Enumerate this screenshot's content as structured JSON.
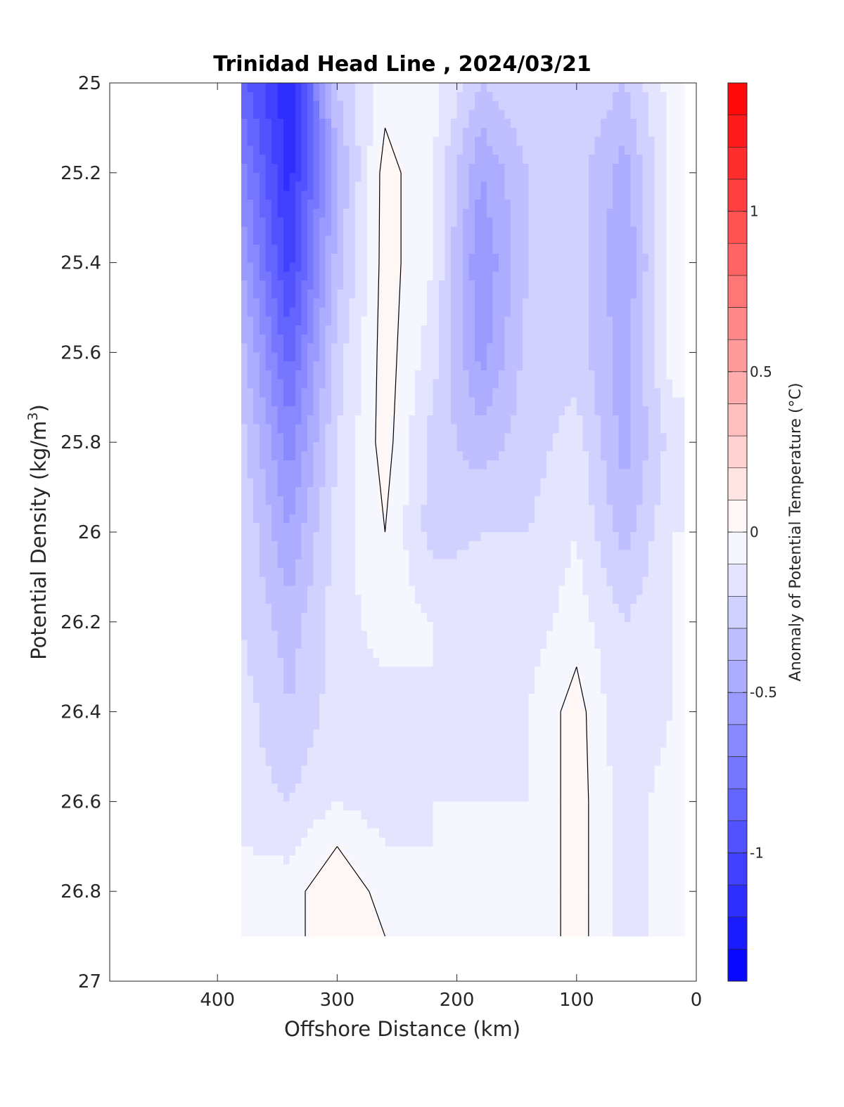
{
  "chart_data": {
    "type": "heatmap",
    "title": "Trinidad Head Line , 2024/03/21",
    "xlabel": "Offshore Distance (km)",
    "ylabel_main": "Potential Density (kg/m",
    "ylabel_sup": "3",
    "ylabel_close": ")",
    "colorbar_label": "Anomaly of Potential Temperature (°C)",
    "xlim": [
      490,
      0
    ],
    "ylim": [
      25,
      27
    ],
    "x_direction": "reversed",
    "y_direction": "reversed",
    "x_ticks": [
      400,
      300,
      200,
      100,
      0
    ],
    "y_ticks": [
      25,
      25.2,
      25.4,
      25.6,
      25.8,
      26,
      26.2,
      26.4,
      26.6,
      26.8,
      27
    ],
    "y_tick_labels": [
      "25",
      "25.2",
      "25.4",
      "25.6",
      "25.8",
      "26",
      "26.2",
      "26.4",
      "26.6",
      "26.8",
      "27"
    ],
    "colorbar_range": [
      -1.4,
      1.4
    ],
    "colorbar_ticks": [
      -1,
      -0.5,
      0,
      0.5,
      1
    ],
    "colorbar_tick_labels": [
      "-1",
      "-0.5",
      "0",
      "0.5",
      "1"
    ],
    "grid": false,
    "colormap": "blue-white-red",
    "colors": {
      "negative_extreme": "#0000ff",
      "zero": "#ffffff",
      "positive_extreme": "#ff0000",
      "contour_line": "#000000"
    },
    "data_extent": {
      "x_range_km": [
        10,
        380
      ],
      "sigma_range": [
        25,
        26.9
      ]
    },
    "stations_km": [
      380,
      340,
      300,
      260,
      220,
      180,
      140,
      100,
      60,
      20
    ],
    "sigma_levels": [
      25.0,
      25.2,
      25.4,
      25.6,
      25.8,
      26.0,
      26.2,
      26.4,
      26.6,
      26.8,
      26.9
    ],
    "anomaly_grid": [
      [
        -0.85,
        -0.65,
        -0.5,
        -0.35,
        -0.25,
        -0.2,
        -0.2,
        -0.15,
        -0.15,
        -0.05,
        -0.05
      ],
      [
        -1.2,
        -1.15,
        -1.05,
        -0.85,
        -0.65,
        -0.5,
        -0.35,
        -0.3,
        -0.2,
        -0.05,
        -0.05
      ],
      [
        -0.3,
        -0.4,
        -0.35,
        -0.25,
        -0.2,
        -0.15,
        -0.15,
        -0.15,
        -0.1,
        0.1,
        0.1
      ],
      [
        -0.05,
        0.05,
        0.05,
        0.05,
        0.05,
        0.0,
        -0.05,
        -0.15,
        -0.15,
        -0.05,
        0.0
      ],
      [
        -0.05,
        -0.1,
        -0.1,
        -0.15,
        -0.25,
        -0.25,
        -0.1,
        -0.1,
        -0.1,
        -0.1,
        -0.05
      ],
      [
        -0.3,
        -0.5,
        -0.6,
        -0.55,
        -0.35,
        -0.2,
        -0.15,
        -0.15,
        -0.1,
        -0.05,
        -0.05
      ],
      [
        -0.2,
        -0.3,
        -0.3,
        -0.25,
        -0.25,
        -0.2,
        -0.15,
        -0.1,
        -0.1,
        -0.1,
        -0.1
      ],
      [
        -0.2,
        -0.25,
        -0.25,
        -0.25,
        -0.15,
        -0.1,
        -0.05,
        0.05,
        0.05,
        0.05,
        0.05
      ],
      [
        -0.3,
        -0.45,
        -0.5,
        -0.45,
        -0.45,
        -0.35,
        -0.2,
        -0.2,
        -0.15,
        -0.15,
        -0.15
      ],
      [
        -0.05,
        -0.05,
        -0.05,
        -0.05,
        -0.15,
        -0.1,
        -0.1,
        -0.1,
        -0.05,
        -0.05,
        -0.05
      ]
    ]
  }
}
